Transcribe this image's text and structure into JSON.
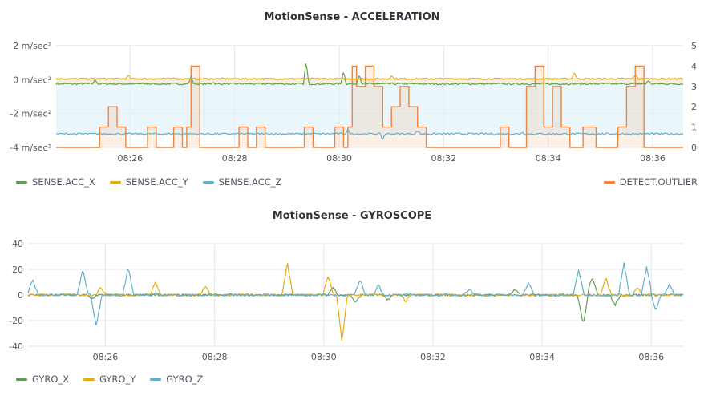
{
  "chart_data": [
    {
      "type": "line",
      "title": "MotionSense - ACCELERATION",
      "y_unit": "m/sec²",
      "ylim": [
        -4,
        2
      ],
      "y_ticks": [
        {
          "v": 2,
          "label": "2 m/sec²"
        },
        {
          "v": 0,
          "label": "0 m/sec²"
        },
        {
          "v": -2,
          "label": "-2 m/sec²"
        },
        {
          "v": -4,
          "label": "-4 m/sec²"
        }
      ],
      "y2lim": [
        0,
        5
      ],
      "y2_ticks": [
        "0",
        "1",
        "2",
        "3",
        "4",
        "5"
      ],
      "xlim": [
        "08:24:35",
        "08:36:35"
      ],
      "x_ticks": [
        "08:26",
        "08:28",
        "08:30",
        "08:32",
        "08:34",
        "08:36"
      ],
      "grid": true,
      "legend_position": "bottom",
      "series": [
        {
          "name": "SENSE.ACC_X",
          "color": "#629e51",
          "axis": "left",
          "level": -0.25,
          "spikes": [
            [
              "08:25:20",
              0.25
            ],
            [
              "08:27:10",
              0.45
            ],
            [
              "08:27:35",
              0.1
            ],
            [
              "08:29:22",
              1.35
            ],
            [
              "08:30:05",
              0.8
            ],
            [
              "08:30:23",
              0.6
            ],
            [
              "08:35:55",
              0.2
            ]
          ]
        },
        {
          "name": "SENSE.ACC_Y",
          "color": "#e5ac0e",
          "axis": "left",
          "level": 0.05,
          "spikes": [
            [
              "08:25:58",
              0.2
            ],
            [
              "08:26:50",
              0.1
            ],
            [
              "08:31:00",
              0.2
            ],
            [
              "08:34:30",
              0.4
            ],
            [
              "08:35:40",
              0.25
            ]
          ]
        },
        {
          "name": "SENSE.ACC_Z",
          "color": "#64b0c8",
          "axis": "left",
          "level": -3.2,
          "spikes": [
            [
              "08:30:10",
              0.25
            ],
            [
              "08:30:50",
              -0.35
            ],
            [
              "08:31:30",
              0.2
            ],
            [
              "08:33:30",
              0.1
            ]
          ]
        },
        {
          "name": "DETECT.OUTLIER",
          "color": "#ef843c",
          "axis": "right",
          "fill": true,
          "steps": [
            [
              "08:24:35",
              0
            ],
            [
              "08:25:25",
              1
            ],
            [
              "08:25:35",
              2
            ],
            [
              "08:25:45",
              1
            ],
            [
              "08:25:55",
              0
            ],
            [
              "08:26:20",
              1
            ],
            [
              "08:26:30",
              0
            ],
            [
              "08:26:50",
              1
            ],
            [
              "08:27:00",
              0
            ],
            [
              "08:27:05",
              1
            ],
            [
              "08:27:10",
              4
            ],
            [
              "08:27:20",
              0
            ],
            [
              "08:28:05",
              1
            ],
            [
              "08:28:15",
              0
            ],
            [
              "08:28:25",
              1
            ],
            [
              "08:28:35",
              0
            ],
            [
              "08:29:20",
              1
            ],
            [
              "08:29:30",
              0
            ],
            [
              "08:29:55",
              1
            ],
            [
              "08:30:05",
              0
            ],
            [
              "08:30:10",
              1
            ],
            [
              "08:30:15",
              4
            ],
            [
              "08:30:20",
              3
            ],
            [
              "08:30:30",
              4
            ],
            [
              "08:30:40",
              3
            ],
            [
              "08:30:50",
              1
            ],
            [
              "08:31:00",
              2
            ],
            [
              "08:31:10",
              3
            ],
            [
              "08:31:20",
              2
            ],
            [
              "08:31:30",
              1
            ],
            [
              "08:31:40",
              0
            ],
            [
              "08:33:05",
              1
            ],
            [
              "08:33:15",
              0
            ],
            [
              "08:33:35",
              3
            ],
            [
              "08:33:45",
              4
            ],
            [
              "08:33:55",
              1
            ],
            [
              "08:34:05",
              3
            ],
            [
              "08:34:15",
              1
            ],
            [
              "08:34:25",
              0
            ],
            [
              "08:34:40",
              1
            ],
            [
              "08:34:55",
              0
            ],
            [
              "08:35:20",
              1
            ],
            [
              "08:35:30",
              3
            ],
            [
              "08:35:40",
              4
            ],
            [
              "08:35:50",
              0
            ],
            [
              "08:36:35",
              0
            ]
          ]
        }
      ]
    },
    {
      "type": "line",
      "title": "MotionSense - GYROSCOPE",
      "ylim": [
        -40,
        40
      ],
      "y_ticks": [
        {
          "v": 40,
          "label": "40"
        },
        {
          "v": 20,
          "label": "20"
        },
        {
          "v": 0,
          "label": "0"
        },
        {
          "v": -20,
          "label": "-20"
        },
        {
          "v": -40,
          "label": "-40"
        }
      ],
      "xlim": [
        "08:24:35",
        "08:36:35"
      ],
      "x_ticks": [
        "08:26",
        "08:28",
        "08:30",
        "08:32",
        "08:34",
        "08:36"
      ],
      "grid": true,
      "legend_position": "bottom",
      "series": [
        {
          "name": "GYRO_X",
          "color": "#629e51",
          "spikes": [
            [
              "08:25:45",
              -3
            ],
            [
              "08:30:10",
              6
            ],
            [
              "08:30:35",
              -6
            ],
            [
              "08:31:10",
              -4
            ],
            [
              "08:33:30",
              4
            ],
            [
              "08:34:45",
              -23
            ],
            [
              "08:34:55",
              14
            ],
            [
              "08:35:20",
              -8
            ]
          ]
        },
        {
          "name": "GYRO_Y",
          "color": "#e5ac0e",
          "spikes": [
            [
              "08:25:55",
              6
            ],
            [
              "08:26:55",
              10
            ],
            [
              "08:27:50",
              7
            ],
            [
              "08:29:20",
              25
            ],
            [
              "08:30:20",
              -37
            ],
            [
              "08:30:05",
              15
            ],
            [
              "08:31:30",
              -5
            ],
            [
              "08:35:10",
              14
            ],
            [
              "08:35:45",
              6
            ]
          ]
        },
        {
          "name": "GYRO_Z",
          "color": "#64b0c8",
          "spikes": [
            [
              "08:24:40",
              12
            ],
            [
              "08:25:35",
              20
            ],
            [
              "08:25:50",
              -25
            ],
            [
              "08:26:25",
              22
            ],
            [
              "08:30:40",
              12
            ],
            [
              "08:31:00",
              8
            ],
            [
              "08:32:40",
              5
            ],
            [
              "08:33:45",
              10
            ],
            [
              "08:34:40",
              20
            ],
            [
              "08:35:30",
              25
            ],
            [
              "08:35:55",
              22
            ],
            [
              "08:36:05",
              -12
            ],
            [
              "08:36:20",
              8
            ]
          ]
        }
      ]
    }
  ]
}
